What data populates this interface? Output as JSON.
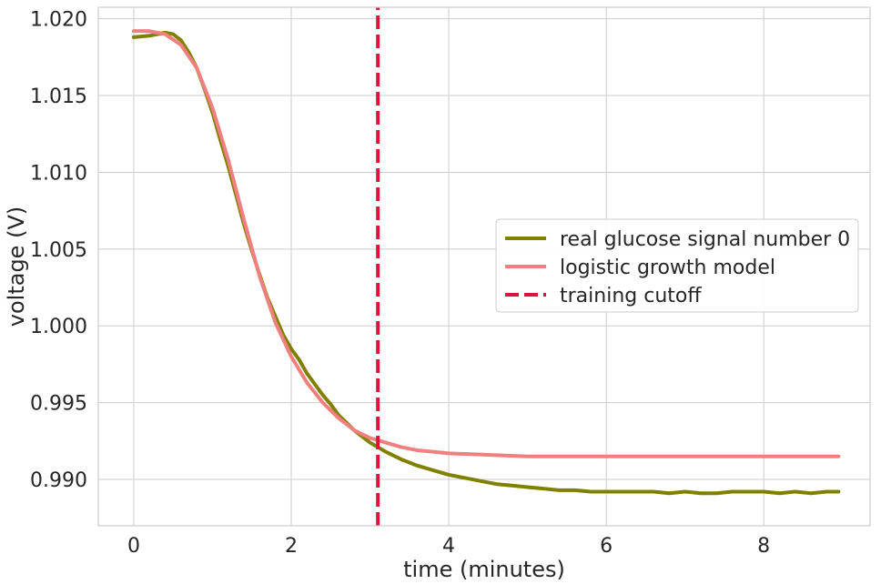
{
  "chart_data": {
    "type": "line",
    "title": "",
    "xlabel": "time (minutes)",
    "ylabel": "voltage (V)",
    "xlim": [
      -0.45,
      9.35
    ],
    "ylim": [
      0.98698,
      1.02075
    ],
    "xticks": [
      0,
      2,
      4,
      6,
      8
    ],
    "xtick_labels": [
      "0",
      "2",
      "4",
      "6",
      "8"
    ],
    "yticks": [
      0.99,
      0.995,
      1.0,
      1.005,
      1.01,
      1.015,
      1.02
    ],
    "ytick_labels": [
      "0.990",
      "0.995",
      "1.000",
      "1.005",
      "1.010",
      "1.015",
      "1.020"
    ],
    "grid": true,
    "legend_position": "center-right",
    "series": [
      {
        "name": "real glucose signal number 0",
        "color": "#808000",
        "style": "solid",
        "x": [
          0,
          0.2,
          0.4,
          0.5,
          0.6,
          0.7,
          0.8,
          0.9,
          1.0,
          1.1,
          1.2,
          1.3,
          1.4,
          1.5,
          1.6,
          1.7,
          1.8,
          1.9,
          2.0,
          2.1,
          2.2,
          2.3,
          2.4,
          2.5,
          2.6,
          2.7,
          2.8,
          2.9,
          3.0,
          3.1,
          3.2,
          3.4,
          3.6,
          3.8,
          4.0,
          4.2,
          4.4,
          4.6,
          4.8,
          5.0,
          5.2,
          5.4,
          5.6,
          5.8,
          6.0,
          6.2,
          6.4,
          6.6,
          6.8,
          7.0,
          7.2,
          7.4,
          7.6,
          7.8,
          8.0,
          8.2,
          8.4,
          8.6,
          8.8,
          8.95
        ],
        "values": [
          1.0188,
          1.0189,
          1.0191,
          1.019,
          1.0186,
          1.0178,
          1.0168,
          1.0154,
          1.0139,
          1.0121,
          1.0104,
          1.0085,
          1.0066,
          1.0049,
          1.0033,
          1.0018,
          1.0006,
          0.9994,
          0.9985,
          0.9978,
          0.9969,
          0.9962,
          0.9955,
          0.9949,
          0.9942,
          0.9937,
          0.9932,
          0.9928,
          0.9924,
          0.9921,
          0.9918,
          0.9913,
          0.9909,
          0.9906,
          0.9903,
          0.9901,
          0.9899,
          0.9897,
          0.9896,
          0.9895,
          0.9894,
          0.9893,
          0.9893,
          0.9892,
          0.9892,
          0.9892,
          0.9892,
          0.9892,
          0.9891,
          0.9892,
          0.9891,
          0.9891,
          0.9892,
          0.9892,
          0.9892,
          0.9891,
          0.9892,
          0.9891,
          0.9892,
          0.9892
        ]
      },
      {
        "name": "logistic growth model",
        "color": "#f08080",
        "style": "solid",
        "x": [
          0,
          0.2,
          0.4,
          0.6,
          0.8,
          1.0,
          1.2,
          1.4,
          1.6,
          1.8,
          2.0,
          2.2,
          2.4,
          2.6,
          2.8,
          3.0,
          3.2,
          3.4,
          3.6,
          3.8,
          4.0,
          4.5,
          5.0,
          5.5,
          6.0,
          6.5,
          7.0,
          7.5,
          8.0,
          8.5,
          8.95
        ],
        "values": [
          1.0192,
          1.0192,
          1.019,
          1.0183,
          1.0168,
          1.0142,
          1.0108,
          1.0069,
          1.0032,
          1.0002,
          0.998,
          0.9963,
          0.995,
          0.994,
          0.9932,
          0.9927,
          0.9924,
          0.9921,
          0.9919,
          0.9918,
          0.9917,
          0.9916,
          0.9915,
          0.9915,
          0.9915,
          0.9915,
          0.9915,
          0.9915,
          0.9915,
          0.9915,
          0.9915
        ]
      },
      {
        "name": "training cutoff",
        "color": "#dc143c",
        "style": "dashed",
        "x": [
          3.1,
          3.1
        ],
        "values": [
          0.98698,
          1.02075
        ]
      }
    ]
  }
}
